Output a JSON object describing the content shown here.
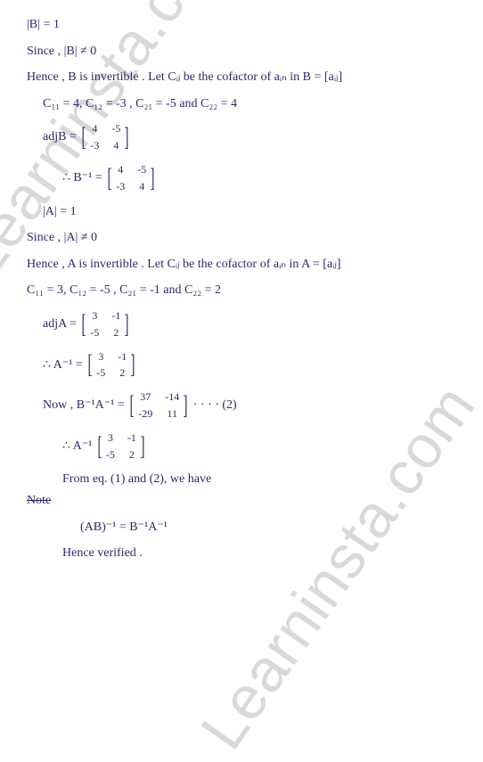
{
  "text_color": "#2a2a6a",
  "watermark_color": "#d9d9d9",
  "background_color": "#ffffff",
  "watermark_text": "Learninsta.com",
  "lines": {
    "l1": "|B| = 1",
    "l2": "Since , |B| ≠ 0",
    "l3": "Hence , B is invertible . Let Cᵢⱼ be the cofactor of aᵢₙ in B = [aᵢⱼ]",
    "l4": "C₁₁ = 4,   C₁₂ = -3 ,   C₂₁ = -5   and  C₂₂ = 4",
    "l5_label": "adjB =",
    "l6_label": "∴  B⁻¹ =",
    "l7": "|A| = 1",
    "l8": "Since , |A| ≠ 0",
    "l9": "Hence , A is invertible . Let Cᵢⱼ be the cofactor of aᵢₙ in A = [aᵢⱼ]",
    "l10": "C₁₁ = 3,   C₁₂ = -5 ,   C₂₁ = -1  and  C₂₂ = 2",
    "l11_label": "adjA =",
    "l12_label": "∴  A⁻¹ =",
    "l13_label": "Now ,  B⁻¹A⁻¹ =",
    "l13_tail": "· · · ·  (2)",
    "l14_label": "∴   A⁻¹",
    "l15": "From eq. (1) and (2), we have",
    "l15_strike": "Note",
    "l16": "(AB)⁻¹  =  B⁻¹A⁻¹",
    "l17": "Hence  verified ."
  },
  "matrices": {
    "adjB": {
      "a": "4",
      "b": "-5",
      "c": "-3",
      "d": "4"
    },
    "Binv": {
      "a": "4",
      "b": "-5",
      "c": "-3",
      "d": "4"
    },
    "adjA": {
      "a": "3",
      "b": "-1",
      "c": "-5",
      "d": "2"
    },
    "Ainv": {
      "a": "3",
      "b": "-1",
      "c": "-5",
      "d": "2"
    },
    "BinvAinv": {
      "a": "37",
      "b": "-14",
      "c": "-29",
      "d": "11"
    },
    "Ainv2": {
      "a": "3",
      "b": "-1",
      "c": "-5",
      "d": "2"
    }
  }
}
